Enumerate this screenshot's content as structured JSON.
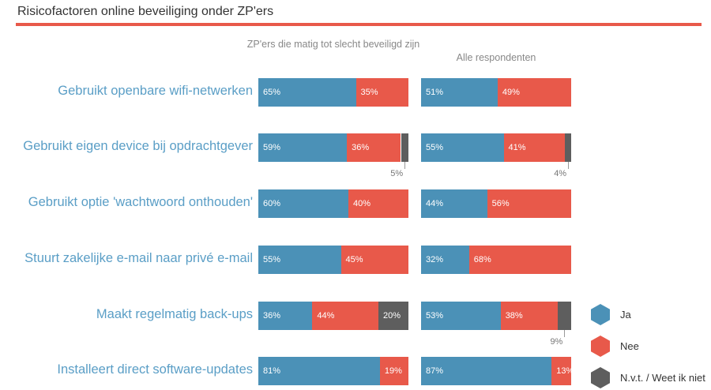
{
  "chart_data": {
    "type": "bar",
    "stacked": true,
    "orientation": "horizontal",
    "title": "Risicofactoren online beveiliging onder ZP'ers",
    "panels": [
      "ZP'ers die matig tot slecht beveiligd zijn",
      "Alle respondenten"
    ],
    "categories": [
      "Gebruikt openbare wifi-netwerken",
      "Gebruikt eigen device bij opdrachtgever",
      "Gebruikt optie 'wachtwoord onthouden'",
      "Stuurt zakelijke e-mail naar privé e-mail",
      "Maakt regelmatig back-ups",
      "Installeert direct software-updates"
    ],
    "series": [
      {
        "name": "Ja",
        "color": "#4b91b7",
        "values_panel1": [
          65,
          59,
          60,
          55,
          36,
          81
        ],
        "values_panel2": [
          51,
          55,
          44,
          32,
          53,
          87
        ]
      },
      {
        "name": "Nee",
        "color": "#e8594a",
        "values_panel1": [
          35,
          36,
          40,
          45,
          44,
          19
        ],
        "values_panel2": [
          49,
          41,
          56,
          68,
          38,
          13
        ]
      },
      {
        "name": "N.v.t. / Weet ik niet",
        "color": "#5e5e5e",
        "values_panel1": [
          0,
          5,
          0,
          0,
          20,
          0
        ],
        "values_panel2": [
          0,
          4,
          0,
          0,
          9,
          0
        ]
      }
    ],
    "unit": "%",
    "legend": "bottom-right",
    "grid": false
  }
}
